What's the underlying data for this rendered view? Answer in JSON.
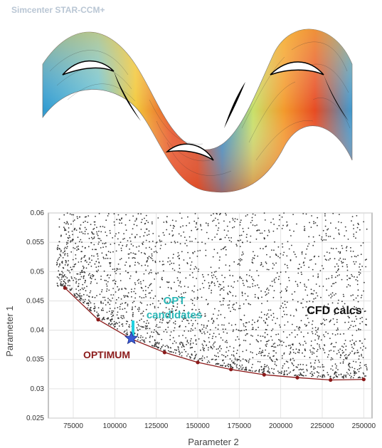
{
  "header": {
    "brand": "Simcenter STAR-CCM+"
  },
  "contour_image": {
    "description_icon": "blade-cascade-contour-icon"
  },
  "chart_data": {
    "type": "scatter",
    "title": "",
    "xlabel": "Parameter 2",
    "ylabel": "Parameter 1",
    "xlim": [
      60000,
      255000
    ],
    "ylim": [
      0.025,
      0.06
    ],
    "xticks": [
      75000,
      100000,
      125000,
      150000,
      175000,
      200000,
      225000,
      250000
    ],
    "xtick_labels": [
      "75000",
      "100000",
      "125000",
      "150000",
      "175000",
      "200000",
      "225000",
      "250000"
    ],
    "yticks": [
      0.025,
      0.03,
      0.035,
      0.04,
      0.045,
      0.05,
      0.055,
      0.06
    ],
    "ytick_labels": [
      "0.025",
      "0.03",
      "0.035",
      "0.04",
      "0.045",
      "0.05",
      "0.055",
      "0.06"
    ],
    "grid": true,
    "series": [
      {
        "kind": "scatter",
        "color": "#333333",
        "count": 2600,
        "x_range": [
          65000,
          252000
        ],
        "pareto_floor": true
      },
      {
        "kind": "line",
        "color": "#8b1a1a",
        "x": [
          70000,
          90000,
          110000,
          130000,
          150000,
          170000,
          190000,
          210000,
          230000,
          250000
        ],
        "y": [
          0.0472,
          0.0418,
          0.0385,
          0.0362,
          0.0345,
          0.0333,
          0.0324,
          0.0319,
          0.0315,
          0.0316
        ]
      }
    ],
    "optimum_point": {
      "x": 110000,
      "y": 0.0386,
      "color": "#3b5bd6"
    },
    "annotations": [
      {
        "text": "OPT candidates",
        "lines": [
          "OPT",
          "candidates"
        ],
        "color": "#2ab7b7"
      },
      {
        "text": "CFD calcs",
        "color": "#111111"
      },
      {
        "text": "OPTIMUM",
        "color": "#8b1a1a"
      }
    ]
  }
}
